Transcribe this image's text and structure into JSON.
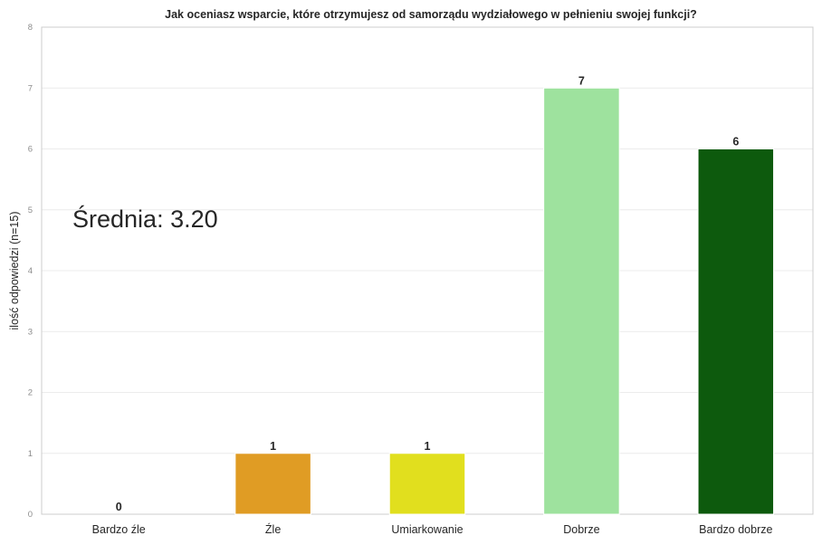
{
  "chart_data": {
    "type": "bar",
    "title": "Jak oceniasz wsparcie, które otrzymujesz od samorządu wydziałowego w pełnieniu swojej funkcji?",
    "xlabel": "",
    "ylabel": "ilość odpowiedzi (n=15)",
    "categories": [
      "Bardzo źle",
      "Źle",
      "Umiarkowanie",
      "Dobrze",
      "Bardzo dobrze"
    ],
    "values": [
      0,
      1,
      1,
      7,
      6
    ],
    "data_labels": [
      "0",
      "1",
      "1",
      "7",
      "6"
    ],
    "colors": [
      "#d62728",
      "#e09c24",
      "#e1df1e",
      "#9ee29e",
      "#0d5a0d"
    ],
    "ylim": [
      0,
      8
    ],
    "yticks": [
      0,
      1,
      2,
      3,
      4,
      5,
      6,
      7,
      8
    ],
    "ytick_labels": [
      "0",
      "1",
      "2",
      "3",
      "4",
      "5",
      "6",
      "7",
      "8"
    ],
    "grid": true,
    "annotation": "Średnia: 3.20"
  }
}
